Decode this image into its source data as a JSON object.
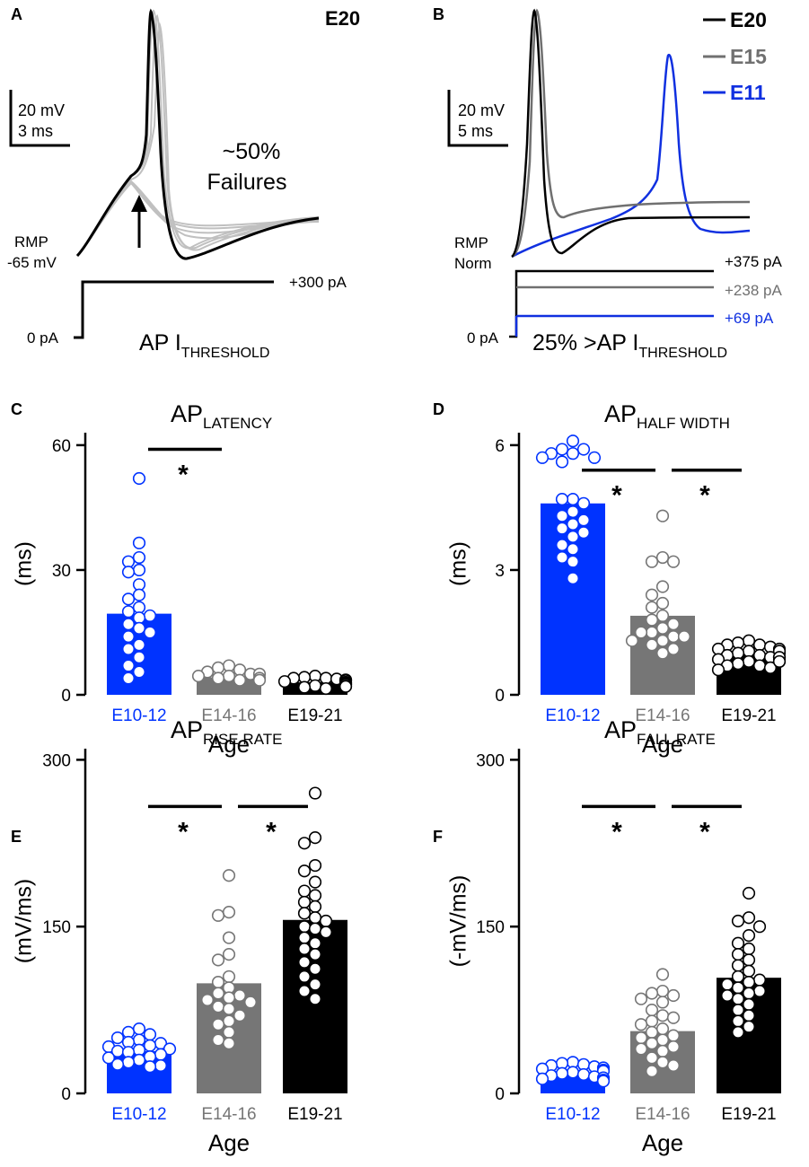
{
  "colors": {
    "e11": "#1030e0",
    "e15": "#707070",
    "e20": "#000000",
    "grey_trace": "#c0c0c0",
    "blue_bar": "#0033ff",
    "grey_bar": "#767676",
    "black_bar": "#000000"
  },
  "panel_a": {
    "letter": "A",
    "age_label": "E20",
    "scale_voltage": "20 mV",
    "scale_time": "3 ms",
    "failures_pct": "~50%",
    "failures_word": "Failures",
    "rmp_label": "RMP",
    "rmp_value": "-65 mV",
    "zero_current": "0 pA",
    "step_current": "+300 pA",
    "threshold_main": "AP I",
    "threshold_sub": "THRESHOLD"
  },
  "panel_b": {
    "letter": "B",
    "legend": [
      {
        "label": "E20",
        "color": "#000000"
      },
      {
        "label": "E15",
        "color": "#707070"
      },
      {
        "label": "E11",
        "color": "#1030e0"
      }
    ],
    "scale_voltage": "20 mV",
    "scale_time": "5 ms",
    "rmp_label": "RMP",
    "norm_label": "Norm",
    "zero_current": "0 pA",
    "currents": [
      {
        "label": "+375 pA",
        "color": "#000000"
      },
      {
        "label": "+238 pA",
        "color": "#707070"
      },
      {
        "label": "+69 pA",
        "color": "#1030e0"
      }
    ],
    "threshold_main": "25% >AP I",
    "threshold_sub": "THRESHOLD"
  },
  "chart_data": [
    {
      "panel": "C",
      "type": "bar",
      "title_main": "AP",
      "title_sub": "LATENCY",
      "xlabel": "Age",
      "ylabel": "(ms)",
      "ylim": [
        0,
        63
      ],
      "yticks": [
        0,
        30,
        60
      ],
      "categories": [
        "E10-12",
        "E14-16",
        "E19-21"
      ],
      "values": [
        19.5,
        4.2,
        3.0
      ],
      "points": [
        [
          52,
          36.5,
          33,
          32,
          30,
          29.5,
          26.5,
          24,
          23,
          21,
          20,
          19,
          18.5,
          17,
          16,
          15,
          14,
          12,
          11,
          9,
          7,
          5.5,
          4
        ],
        [
          7,
          6.5,
          6,
          5.5,
          5,
          5,
          4.5,
          4.5,
          4,
          4,
          3.5,
          3.5
        ],
        [
          4.5,
          4.2,
          4,
          4,
          3.8,
          3.6,
          3.5,
          3.4,
          3.2,
          3,
          3,
          2.8,
          2.6,
          2.5,
          2.4,
          2.2,
          2,
          2,
          1.8,
          1.5
        ]
      ],
      "significance": [
        {
          "from": 0,
          "to": 1,
          "label": "*",
          "y": 59
        }
      ]
    },
    {
      "panel": "D",
      "type": "bar",
      "title_main": "AP",
      "title_sub": "HALF WIDTH",
      "xlabel": "Age",
      "ylabel": "(ms)",
      "ylim": [
        0,
        6.3
      ],
      "yticks": [
        0,
        3,
        6
      ],
      "categories": [
        "E10-12",
        "E14-16",
        "E19-21"
      ],
      "values": [
        4.6,
        1.9,
        0.95
      ],
      "points": [
        [
          6.1,
          5.9,
          5.9,
          5.8,
          5.8,
          5.7,
          5.7,
          5.6,
          4.7,
          4.7,
          4.6,
          4.4,
          4.3,
          4.2,
          4.1,
          4.0,
          3.9,
          3.8,
          3.6,
          3.5,
          3.3,
          3.2,
          2.8
        ],
        [
          4.3,
          3.3,
          3.2,
          3.2,
          2.6,
          2.4,
          2.2,
          2.1,
          1.9,
          1.8,
          1.7,
          1.6,
          1.5,
          1.5,
          1.4,
          1.4,
          1.3,
          1.3,
          1.2,
          1.1,
          1.0
        ],
        [
          1.3,
          1.25,
          1.2,
          1.2,
          1.15,
          1.1,
          1.1,
          1.05,
          1.0,
          1.0,
          0.95,
          0.95,
          0.9,
          0.9,
          0.85,
          0.85,
          0.8,
          0.8,
          0.75,
          0.7,
          0.7,
          0.65,
          0.6,
          1.05,
          0.9,
          0.8
        ]
      ],
      "significance": [
        {
          "from": 0,
          "to": 1,
          "label": "*",
          "y": 5.4
        },
        {
          "from": 1,
          "to": 2,
          "label": "*",
          "y": 5.4
        }
      ]
    },
    {
      "panel": "E",
      "type": "bar",
      "title_main": "AP",
      "title_sub": "RISE RATE",
      "xlabel": "Age",
      "ylabel": "(mV/ms)",
      "ylim": [
        0,
        310
      ],
      "yticks": [
        0,
        150,
        300
      ],
      "categories": [
        "E10-12",
        "E14-16",
        "E19-21"
      ],
      "values": [
        38,
        99,
        156
      ],
      "points": [
        [
          58,
          55,
          53,
          50,
          48,
          46,
          45,
          43,
          42,
          40,
          39,
          38,
          37,
          35,
          33,
          32,
          30,
          28,
          26,
          25,
          24
        ],
        [
          196,
          163,
          160,
          140,
          125,
          120,
          105,
          100,
          95,
          90,
          88,
          86,
          84,
          82,
          78,
          76,
          70,
          65,
          62,
          55,
          48,
          45
        ],
        [
          270,
          230,
          225,
          205,
          200,
          190,
          182,
          178,
          172,
          168,
          162,
          158,
          155,
          150,
          148,
          145,
          140,
          135,
          130,
          125,
          118,
          112,
          105,
          98,
          92,
          85
        ]
      ],
      "significance": [
        {
          "from": 0,
          "to": 1,
          "label": "*",
          "y": 258
        },
        {
          "from": 1,
          "to": 2,
          "label": "*",
          "y": 258
        }
      ]
    },
    {
      "panel": "F",
      "type": "bar",
      "title_main": "AP",
      "title_sub": "FALL RATE",
      "xlabel": "Age",
      "ylabel": "(-mV/ms)",
      "ylim": [
        0,
        310
      ],
      "yticks": [
        0,
        150,
        300
      ],
      "categories": [
        "E10-12",
        "E14-16",
        "E19-21"
      ],
      "values": [
        19,
        56,
        104
      ],
      "points": [
        [
          28,
          27,
          26,
          25,
          24,
          23,
          22,
          21,
          20,
          19,
          18,
          17,
          16,
          15,
          14,
          13,
          12,
          11
        ],
        [
          107,
          92,
          90,
          88,
          85,
          82,
          75,
          70,
          68,
          65,
          62,
          58,
          55,
          52,
          50,
          48,
          45,
          42,
          40,
          38,
          32,
          28,
          25,
          20
        ],
        [
          180,
          158,
          155,
          150,
          142,
          135,
          130,
          125,
          120,
          115,
          110,
          105,
          102,
          100,
          98,
          95,
          92,
          90,
          88,
          85,
          80,
          75,
          70,
          65,
          60,
          55
        ]
      ],
      "significance": [
        {
          "from": 0,
          "to": 1,
          "label": "*",
          "y": 258
        },
        {
          "from": 1,
          "to": 2,
          "label": "*",
          "y": 258
        }
      ]
    }
  ]
}
